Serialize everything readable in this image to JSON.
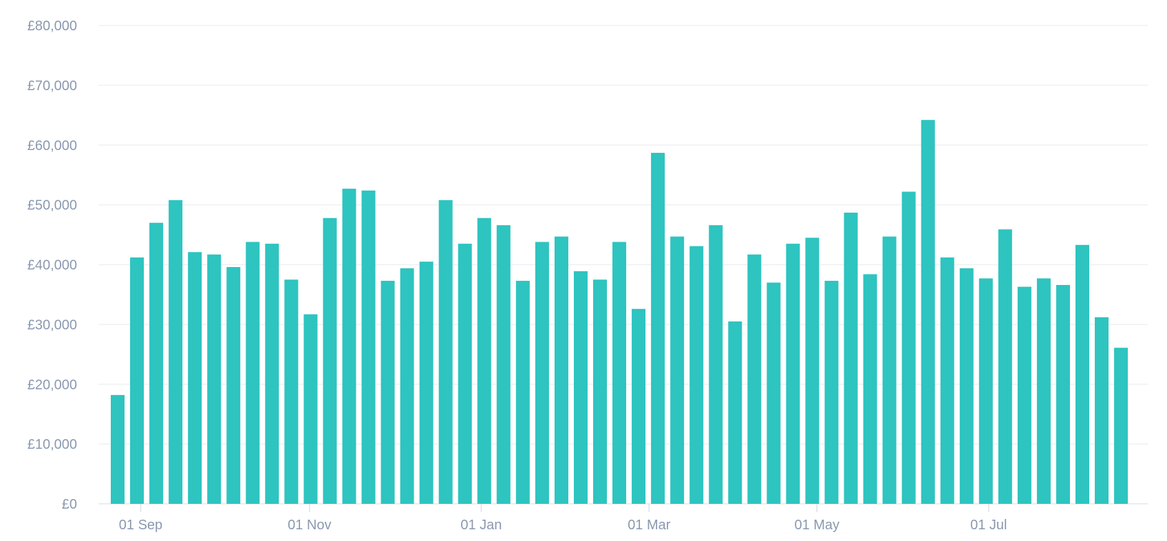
{
  "chart_data": {
    "type": "bar",
    "color": "#2ec4c0",
    "grid": true,
    "ylim": [
      0,
      80000
    ],
    "y_ticks": [
      0,
      10000,
      20000,
      30000,
      40000,
      50000,
      60000,
      70000,
      80000
    ],
    "y_tick_labels": [
      "£0",
      "£10,000",
      "£20,000",
      "£30,000",
      "£40,000",
      "£50,000",
      "£60,000",
      "£70,000",
      "£80,000"
    ],
    "x_tick_labels": [
      {
        "label": "01 Sep",
        "after_bar": 1.55
      },
      {
        "label": "01 Nov",
        "after_bar": 10.3
      },
      {
        "label": "01 Jan",
        "after_bar": 19.2
      },
      {
        "label": "01 Mar",
        "after_bar": 27.9
      },
      {
        "label": "01 May",
        "after_bar": 36.6
      },
      {
        "label": "01 Jul",
        "after_bar": 45.5
      }
    ],
    "values": [
      18200,
      41200,
      47000,
      50800,
      42100,
      41700,
      39600,
      43800,
      43500,
      37500,
      31700,
      47800,
      52700,
      52400,
      37300,
      39400,
      40500,
      50800,
      43500,
      47800,
      46600,
      37300,
      43800,
      44700,
      38900,
      37500,
      43800,
      32600,
      58700,
      44700,
      43100,
      46600,
      30500,
      41700,
      37000,
      43500,
      44500,
      37300,
      48700,
      38400,
      44700,
      52200,
      64200,
      41200,
      39400,
      37700,
      45900,
      36300,
      37700,
      36600,
      43300,
      31200,
      26100
    ]
  }
}
